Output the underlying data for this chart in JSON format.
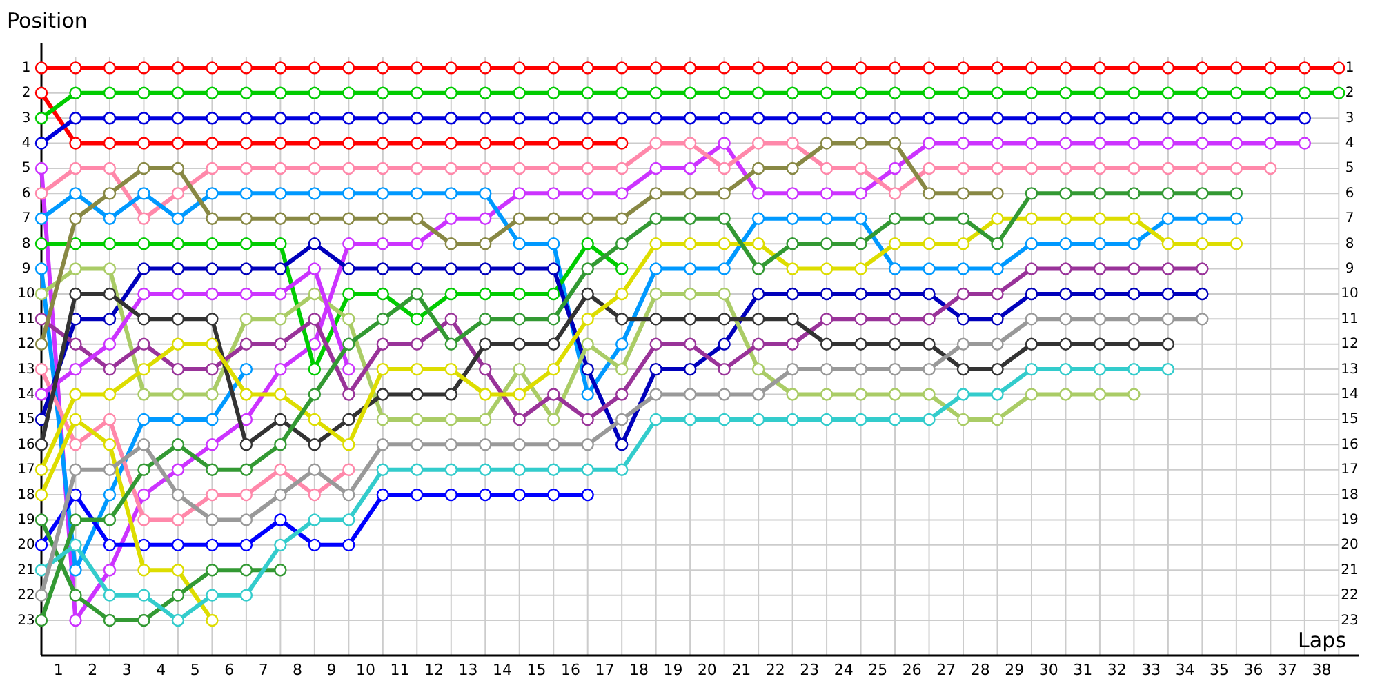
{
  "chart_data": {
    "type": "line",
    "xlabel": "Laps",
    "ylabel": "Position",
    "x": [
      0,
      1,
      2,
      3,
      4,
      5,
      6,
      7,
      8,
      9,
      10,
      11,
      12,
      13,
      14,
      15,
      16,
      17,
      18,
      19,
      20,
      21,
      22,
      23,
      24,
      25,
      26,
      27,
      28,
      29,
      30,
      31,
      32,
      33,
      34,
      35,
      36,
      37,
      38
    ],
    "xlim": [
      0,
      38.6
    ],
    "ylim": [
      24.4,
      0
    ],
    "y2lim": [
      23,
      1
    ],
    "xticks": [
      {
        "value": 0.5,
        "label": "1"
      },
      {
        "value": 1.5,
        "label": "2"
      },
      {
        "value": 2.5,
        "label": "3"
      },
      {
        "value": 3.5,
        "label": "4"
      },
      {
        "value": 4.5,
        "label": "5"
      },
      {
        "value": 5.5,
        "label": "6"
      },
      {
        "value": 6.5,
        "label": "7"
      },
      {
        "value": 7.5,
        "label": "8"
      },
      {
        "value": 8.5,
        "label": "9"
      },
      {
        "value": 9.5,
        "label": "10"
      },
      {
        "value": 10.5,
        "label": "11"
      },
      {
        "value": 11.5,
        "label": "12"
      },
      {
        "value": 12.5,
        "label": "13"
      },
      {
        "value": 13.5,
        "label": "14"
      },
      {
        "value": 14.5,
        "label": "15"
      },
      {
        "value": 15.5,
        "label": "16"
      },
      {
        "value": 16.5,
        "label": "17"
      },
      {
        "value": 17.5,
        "label": "18"
      },
      {
        "value": 18.5,
        "label": "19"
      },
      {
        "value": 19.5,
        "label": "20"
      },
      {
        "value": 20.5,
        "label": "21"
      },
      {
        "value": 21.5,
        "label": "22"
      },
      {
        "value": 22.5,
        "label": "23"
      },
      {
        "value": 23.5,
        "label": "24"
      },
      {
        "value": 24.5,
        "label": "25"
      },
      {
        "value": 25.5,
        "label": "26"
      },
      {
        "value": 26.5,
        "label": "27"
      },
      {
        "value": 27.5,
        "label": "28"
      },
      {
        "value": 28.5,
        "label": "29"
      },
      {
        "value": 29.5,
        "label": "30"
      },
      {
        "value": 30.5,
        "label": "31"
      },
      {
        "value": 31.5,
        "label": "32"
      },
      {
        "value": 32.5,
        "label": "33"
      },
      {
        "value": 33.5,
        "label": "34"
      },
      {
        "value": 34.5,
        "label": "35"
      },
      {
        "value": 35.5,
        "label": "36"
      },
      {
        "value": 36.5,
        "label": "37"
      },
      {
        "value": 37.5,
        "label": "38"
      }
    ],
    "yticks": [
      1,
      2,
      3,
      4,
      5,
      6,
      7,
      8,
      9,
      10,
      11,
      12,
      13,
      14,
      15,
      16,
      17,
      18,
      19,
      20,
      21,
      22,
      23
    ],
    "y2ticks": [
      1,
      2,
      3,
      4,
      5,
      6,
      7,
      8,
      9,
      10,
      11,
      12,
      13,
      14,
      15,
      16,
      17,
      18,
      19,
      20,
      21,
      22,
      23
    ],
    "grid": true,
    "marker": "circle",
    "line_style": "solid",
    "series": [
      {
        "color": "#ff0000",
        "values": [
          1,
          1,
          1,
          1,
          1,
          1,
          1,
          1,
          1,
          1,
          1,
          1,
          1,
          1,
          1,
          1,
          1,
          1,
          1,
          1,
          1,
          1,
          1,
          1,
          1,
          1,
          1,
          1,
          1,
          1,
          1,
          1,
          1,
          1,
          1,
          1,
          1,
          1,
          1
        ]
      },
      {
        "color": "#ff0000",
        "values": [
          2,
          4,
          4,
          4,
          4,
          4,
          4,
          4,
          4,
          4,
          4,
          4,
          4,
          4,
          4,
          4,
          4,
          4,
          null,
          null,
          null,
          null,
          null,
          null,
          null,
          null,
          null,
          null,
          null,
          null,
          null,
          null,
          null,
          null,
          null,
          null,
          null,
          null,
          null
        ]
      },
      {
        "color": "#00cc00",
        "values": [
          3,
          2,
          2,
          2,
          2,
          2,
          2,
          2,
          2,
          2,
          2,
          2,
          2,
          2,
          2,
          2,
          2,
          2,
          2,
          2,
          2,
          2,
          2,
          2,
          2,
          2,
          2,
          2,
          2,
          2,
          2,
          2,
          2,
          2,
          2,
          2,
          2,
          2,
          2
        ]
      },
      {
        "color": "#0000dd",
        "values": [
          4,
          3,
          3,
          3,
          3,
          3,
          3,
          3,
          3,
          3,
          3,
          3,
          3,
          3,
          3,
          3,
          3,
          3,
          3,
          3,
          3,
          3,
          3,
          3,
          3,
          3,
          3,
          3,
          3,
          3,
          3,
          3,
          3,
          3,
          3,
          3,
          3,
          3,
          null
        ]
      },
      {
        "color": "#cc33ff",
        "values": [
          5,
          23,
          21,
          18,
          17,
          16,
          15,
          13,
          12,
          8,
          8,
          8,
          7,
          7,
          6,
          6,
          6,
          6,
          5,
          5,
          4,
          6,
          6,
          6,
          6,
          5,
          4,
          4,
          4,
          4,
          4,
          4,
          4,
          4,
          4,
          4,
          4,
          4,
          null
        ]
      },
      {
        "color": "#ff88aa",
        "values": [
          6,
          5,
          5,
          7,
          6,
          5,
          5,
          5,
          5,
          5,
          5,
          5,
          5,
          5,
          5,
          5,
          5,
          5,
          4,
          4,
          5,
          4,
          4,
          5,
          5,
          6,
          5,
          5,
          5,
          5,
          5,
          5,
          5,
          5,
          5,
          5,
          5,
          null,
          null
        ]
      },
      {
        "color": "#0099ff",
        "values": [
          7,
          6,
          7,
          6,
          7,
          6,
          6,
          6,
          6,
          6,
          6,
          6,
          6,
          6,
          8,
          8,
          14,
          12,
          9,
          9,
          9,
          7,
          7,
          7,
          7,
          9,
          9,
          9,
          9,
          8,
          8,
          8,
          8,
          7,
          7,
          7,
          null,
          null,
          null
        ]
      },
      {
        "color": "#0099ff",
        "values": [
          9,
          21,
          18,
          15,
          15,
          15,
          13,
          null,
          null,
          null,
          null,
          null,
          null,
          null,
          null,
          null,
          null,
          null,
          null,
          null,
          null,
          null,
          null,
          null,
          null,
          null,
          null,
          null,
          null,
          null,
          null,
          null,
          null,
          null,
          null,
          null,
          null,
          null,
          null
        ]
      },
      {
        "color": "#00cc00",
        "values": [
          8,
          8,
          8,
          8,
          8,
          8,
          8,
          8,
          13,
          10,
          10,
          11,
          10,
          10,
          10,
          10,
          8,
          9,
          null,
          null,
          null,
          null,
          null,
          null,
          null,
          null,
          null,
          null,
          null,
          null,
          null,
          null,
          null,
          null,
          null,
          null,
          null,
          null,
          null
        ]
      },
      {
        "color": "#0000bb",
        "values": [
          15,
          11,
          11,
          9,
          9,
          9,
          9,
          9,
          8,
          9,
          9,
          9,
          9,
          9,
          9,
          9,
          13,
          16,
          13,
          13,
          12,
          10,
          10,
          10,
          10,
          10,
          10,
          11,
          11,
          10,
          10,
          10,
          10,
          10,
          10,
          null,
          null,
          null,
          null
        ]
      },
      {
        "color": "#0000ff",
        "values": [
          20,
          18,
          20,
          20,
          20,
          20,
          20,
          19,
          20,
          20,
          18,
          18,
          18,
          18,
          18,
          18,
          18,
          null,
          null,
          null,
          null,
          null,
          null,
          null,
          null,
          null,
          null,
          null,
          null,
          null,
          null,
          null,
          null,
          null,
          null,
          null,
          null,
          null,
          null
        ]
      },
      {
        "color": "#aacc66",
        "values": [
          10,
          9,
          9,
          14,
          14,
          14,
          11,
          11,
          10,
          11,
          15,
          15,
          15,
          15,
          13,
          15,
          12,
          13,
          10,
          10,
          10,
          13,
          14,
          14,
          14,
          14,
          14,
          15,
          15,
          14,
          14,
          14,
          14,
          null,
          null,
          null,
          null,
          null,
          null
        ]
      },
      {
        "color": "#993399",
        "values": [
          11,
          12,
          13,
          12,
          13,
          13,
          12,
          12,
          11,
          14,
          12,
          12,
          11,
          13,
          15,
          14,
          15,
          14,
          12,
          12,
          13,
          12,
          12,
          11,
          11,
          11,
          11,
          10,
          10,
          9,
          9,
          9,
          9,
          9,
          9,
          null,
          null,
          null,
          null
        ]
      },
      {
        "color": "#888844",
        "values": [
          12,
          7,
          6,
          5,
          5,
          7,
          7,
          7,
          7,
          7,
          7,
          7,
          8,
          8,
          7,
          7,
          7,
          7,
          6,
          6,
          6,
          5,
          5,
          4,
          4,
          4,
          6,
          6,
          6,
          null,
          null,
          null,
          null,
          null,
          null,
          null,
          null,
          null,
          null
        ]
      },
      {
        "color": "#ff88aa",
        "values": [
          13,
          16,
          15,
          19,
          19,
          18,
          18,
          17,
          18,
          17,
          null,
          null,
          null,
          null,
          null,
          null,
          null,
          null,
          null,
          null,
          null,
          null,
          null,
          null,
          null,
          null,
          null,
          null,
          null,
          null,
          null,
          null,
          null,
          null,
          null,
          null,
          null,
          null,
          null
        ]
      },
      {
        "color": "#cc33ff",
        "values": [
          14,
          13,
          12,
          10,
          10,
          10,
          10,
          10,
          9,
          13,
          null,
          null,
          null,
          null,
          null,
          null,
          null,
          null,
          null,
          null,
          null,
          null,
          null,
          null,
          null,
          null,
          null,
          null,
          null,
          null,
          null,
          null,
          null,
          null,
          null,
          null,
          null,
          null,
          null
        ]
      },
      {
        "color": "#333333",
        "values": [
          16,
          10,
          10,
          11,
          11,
          11,
          16,
          15,
          16,
          15,
          14,
          14,
          14,
          12,
          12,
          12,
          10,
          11,
          11,
          11,
          11,
          11,
          11,
          12,
          12,
          12,
          12,
          13,
          13,
          12,
          12,
          12,
          12,
          12,
          null,
          null,
          null,
          null,
          null
        ]
      },
      {
        "color": "#dddd00",
        "values": [
          17,
          14,
          14,
          13,
          12,
          12,
          14,
          14,
          15,
          16,
          13,
          13,
          13,
          14,
          14,
          13,
          11,
          10,
          8,
          8,
          8,
          8,
          9,
          9,
          9,
          8,
          8,
          8,
          7,
          7,
          7,
          7,
          7,
          8,
          8,
          8,
          null,
          null,
          null
        ]
      },
      {
        "color": "#dddd00",
        "values": [
          18,
          15,
          16,
          21,
          21,
          23,
          null,
          null,
          null,
          null,
          null,
          null,
          null,
          null,
          null,
          null,
          null,
          null,
          null,
          null,
          null,
          null,
          null,
          null,
          null,
          null,
          null,
          null,
          null,
          null,
          null,
          null,
          null,
          null,
          null,
          null,
          null,
          null,
          null
        ]
      },
      {
        "color": "#339933",
        "values": [
          19,
          22,
          23,
          23,
          22,
          21,
          21,
          21,
          null,
          null,
          null,
          null,
          null,
          null,
          null,
          null,
          null,
          null,
          null,
          null,
          null,
          null,
          null,
          null,
          null,
          null,
          null,
          null,
          null,
          null,
          null,
          null,
          null,
          null,
          null,
          null,
          null,
          null,
          null
        ]
      },
      {
        "color": "#339933",
        "values": [
          23,
          19,
          19,
          17,
          16,
          17,
          17,
          16,
          14,
          12,
          11,
          10,
          12,
          11,
          11,
          11,
          9,
          8,
          7,
          7,
          7,
          9,
          8,
          8,
          8,
          7,
          7,
          7,
          8,
          6,
          6,
          6,
          6,
          6,
          6,
          6,
          null,
          null,
          null
        ]
      },
      {
        "color": "#33cccc",
        "values": [
          21,
          20,
          22,
          22,
          23,
          22,
          22,
          20,
          19,
          19,
          17,
          17,
          17,
          17,
          17,
          17,
          17,
          17,
          15,
          15,
          15,
          15,
          15,
          15,
          15,
          15,
          15,
          14,
          14,
          13,
          13,
          13,
          13,
          13,
          null,
          null,
          null,
          null,
          null
        ]
      },
      {
        "color": "#999999",
        "values": [
          22,
          17,
          17,
          16,
          18,
          19,
          19,
          18,
          17,
          18,
          16,
          16,
          16,
          16,
          16,
          16,
          16,
          15,
          14,
          14,
          14,
          14,
          13,
          13,
          13,
          13,
          13,
          12,
          12,
          11,
          11,
          11,
          11,
          11,
          11,
          null,
          null,
          null,
          null
        ]
      }
    ]
  }
}
